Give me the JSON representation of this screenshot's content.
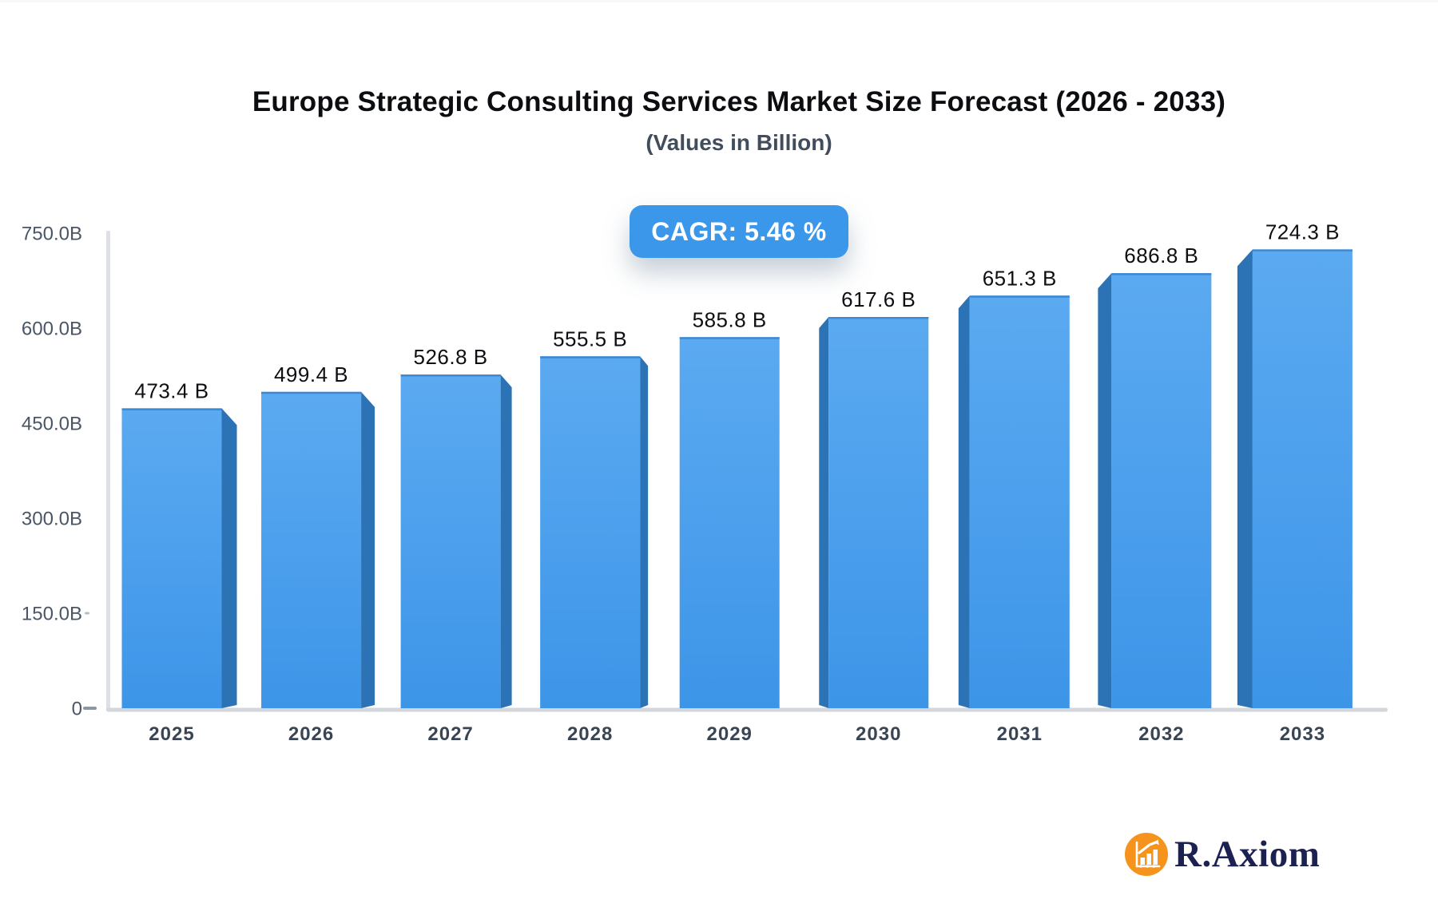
{
  "header": {
    "cagr_label": "CAGR: 5.46 %"
  },
  "logo": {
    "brand": "R.Axiom",
    "icon": "bar-chart-growth-icon"
  },
  "colors": {
    "bar_face_top": "#5baaf1",
    "bar_face_bottom": "#3d95e8",
    "bar_face_edge": "#3a87d2",
    "bar_side": "#2c73b5",
    "axis_line": "#dde0e6",
    "baseline": "#d3d6da",
    "tick": "#8d97a3",
    "y_label": "#4a5666",
    "x_label": "#3a4554",
    "value_label": "#0d0f12",
    "badge_bg": "#3b97ea",
    "badge_text": "#ffffff",
    "logo_orange": "#f6931d",
    "logo_navy": "#1b2150"
  },
  "chart_data": {
    "type": "bar",
    "title": "Europe Strategic Consulting Services Market Size Forecast (2026 - 2033)",
    "subtitle": "(Values in Billion)",
    "categories": [
      "2025",
      "2026",
      "2027",
      "2028",
      "2029",
      "2030",
      "2031",
      "2032",
      "2033"
    ],
    "values": [
      473.4,
      499.4,
      526.8,
      555.5,
      585.8,
      617.6,
      651.3,
      686.8,
      724.3
    ],
    "value_labels": [
      "473.4 B",
      "499.4 B",
      "526.8 B",
      "555.5 B",
      "585.8 B",
      "617.6 B",
      "651.3 B",
      "686.8 B",
      "724.3 B"
    ],
    "unit": "Billion",
    "xlabel": "",
    "ylabel": "",
    "ylim": [
      0,
      750
    ],
    "yticks": [
      {
        "value": 0,
        "label": "0"
      },
      {
        "value": 150,
        "label": "150.0B"
      },
      {
        "value": 300,
        "label": "300.0B"
      },
      {
        "value": 450,
        "label": "450.0B"
      },
      {
        "value": 600,
        "label": "600.0B"
      },
      {
        "value": 750,
        "label": "750.0B"
      }
    ],
    "grid": false,
    "legend": false,
    "style": "3d-perspective-bars"
  }
}
